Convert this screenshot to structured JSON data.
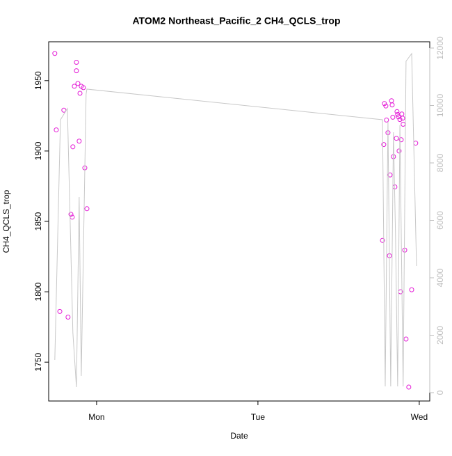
{
  "chart_data": {
    "type": "scatter",
    "title": "ATOM2 Northeast_Pacific_2 CH4_QCLS_trop",
    "xlabel": "Date",
    "ylabel": "CH4_QCLS_trop",
    "xlim": [
      -0.297,
      2.065
    ],
    "xticks": [
      {
        "value": 0,
        "label": "Mon"
      },
      {
        "value": 1,
        "label": "Tue"
      },
      {
        "value": 2,
        "label": "Wed"
      }
    ],
    "ylim": [
      1722.4,
      1977.6
    ],
    "yticks": [
      1750,
      1800,
      1850,
      1900,
      1950
    ],
    "y2lim": [
      -291,
      12218
    ],
    "y2ticks": [
      0,
      2000,
      4000,
      6000,
      8000,
      10000,
      12000
    ],
    "y2color": "#bebebe",
    "series": [
      {
        "mode": "points",
        "color": "#e41ad6",
        "x": [
          -0.259,
          -0.25,
          -0.228,
          -0.203,
          -0.177,
          -0.159,
          -0.151,
          -0.147,
          -0.138,
          -0.125,
          -0.125,
          -0.116,
          -0.108,
          -0.103,
          -0.095,
          -0.082,
          -0.073,
          -0.06,
          1.772,
          1.78,
          1.784,
          1.793,
          1.797,
          1.806,
          1.815,
          1.819,
          1.828,
          1.832,
          1.836,
          1.84,
          1.849,
          1.858,
          1.862,
          1.866,
          1.871,
          1.875,
          1.88,
          1.884,
          1.888,
          1.892,
          1.897,
          1.9,
          1.91,
          1.918,
          1.935,
          1.953,
          1.978
        ],
        "values": [
          1969.3,
          1915,
          1786,
          1929,
          1782,
          1855,
          1853,
          1903,
          1946,
          1957,
          1963,
          1948,
          1907,
          1941,
          1946,
          1945,
          1888,
          1859,
          1836.5,
          1904.6,
          1933.7,
          1932,
          1922,
          1913,
          1825.6,
          1883,
          1935.7,
          1932.7,
          1924,
          1896,
          1874.5,
          1909,
          1928,
          1926,
          1924.3,
          1900,
          1922.4,
          1800,
          1908,
          1926.3,
          1923.3,
          1919,
          1829.6,
          1766.4,
          1732.3,
          1801.4,
          1905.6
        ]
      },
      {
        "mode": "line",
        "axis": "y2",
        "color": "#c8c8c8",
        "x": [
          -0.259,
          -0.224,
          -0.181,
          -0.147,
          -0.125,
          -0.108,
          -0.095,
          -0.065,
          -0.06,
          1.772,
          1.789,
          1.806,
          1.823,
          1.84,
          1.853,
          1.866,
          1.88,
          1.9,
          1.918,
          1.953,
          1.983
        ],
        "values": [
          1139,
          9503,
          9891,
          2085,
          194,
          6812,
          582,
          10400,
          10570,
          9503,
          218,
          9430,
          218,
          9067,
          5430,
          218,
          9309,
          218,
          11539,
          11806,
          4412
        ]
      }
    ]
  }
}
